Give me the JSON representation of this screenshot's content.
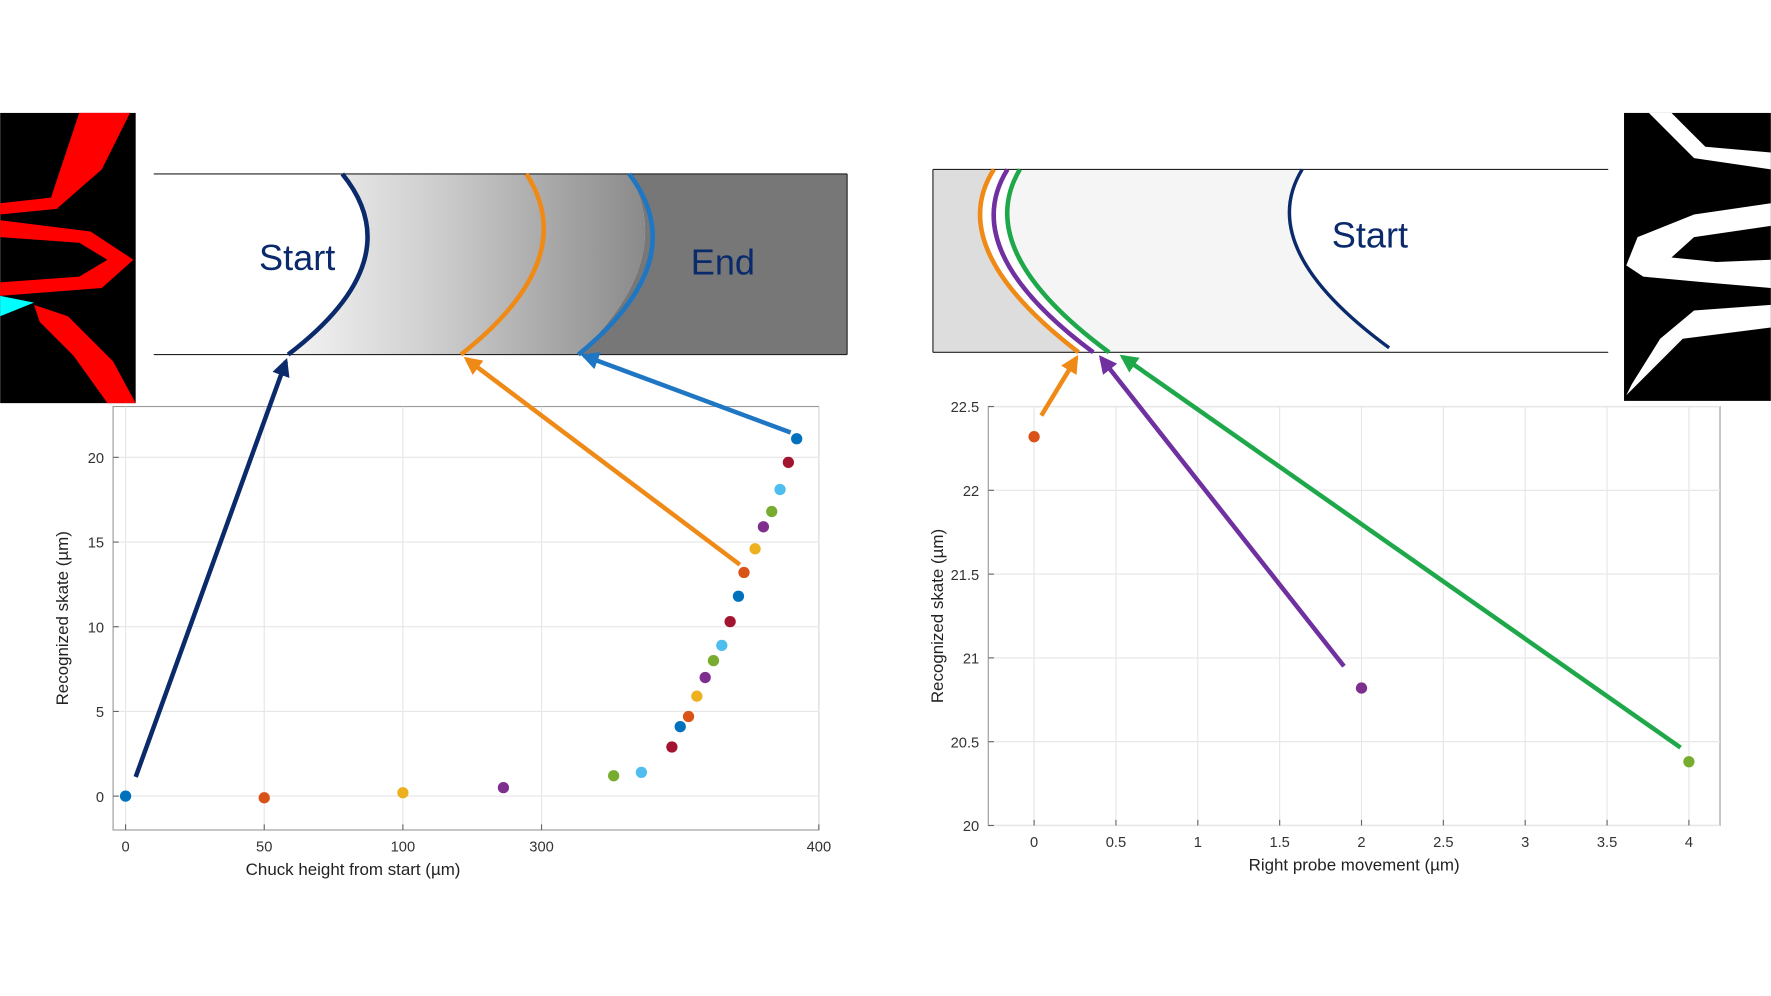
{
  "chart_data": [
    {
      "type": "scatter",
      "x_label": "Chuck height from start (µm)",
      "y_label": "Recognized skate (µm)",
      "annotations": [
        "Start",
        "End"
      ],
      "x": [
        0,
        50,
        100,
        245,
        326,
        336,
        347,
        350,
        353,
        356,
        359,
        362,
        365,
        368,
        371,
        373,
        377,
        380,
        383,
        386,
        389,
        392
      ],
      "y": [
        0,
        -0.1,
        0.2,
        0.5,
        1.2,
        1.4,
        2.9,
        4.1,
        4.7,
        5.9,
        7.0,
        8.0,
        8.9,
        10.3,
        11.8,
        13.2,
        14.6,
        15.9,
        16.8,
        18.1,
        19.7,
        21.1
      ],
      "colors": [
        "#0072bd",
        "#d95319",
        "#edb120",
        "#7e2f8e",
        "#77ac30",
        "#4dbeee",
        "#a2142f",
        "#0072bd",
        "#d95319",
        "#edb120",
        "#7e2f8e",
        "#77ac30",
        "#4dbeee",
        "#a2142f",
        "#0072bd",
        "#d95319",
        "#edb120",
        "#7e2f8e",
        "#77ac30",
        "#4dbeee",
        "#a2142f",
        "#0072bd"
      ],
      "xlim": [
        -4.5,
        400
      ],
      "ylim": [
        -2,
        23
      ],
      "xticks": [
        0,
        50,
        100,
        300,
        400
      ],
      "yticks": [
        0,
        5,
        10,
        15,
        20
      ],
      "grid": true
    },
    {
      "type": "scatter",
      "x_label": "Right probe movement (µm)",
      "y_label": "Recognized skate (µm)",
      "annotations": [
        "Start"
      ],
      "x": [
        0,
        2,
        4
      ],
      "y": [
        22.32,
        20.82,
        20.38
      ],
      "colors": [
        "#d95319",
        "#7e2f8e",
        "#77ac30"
      ],
      "xlim": [
        -0.28,
        4.19
      ],
      "ylim": [
        20,
        22.5
      ],
      "xticks": [
        0,
        0.5,
        1,
        1.5,
        2,
        2.5,
        3,
        3.5,
        4
      ],
      "yticks": [
        20,
        20.5,
        21,
        21.5,
        22,
        22.5
      ],
      "grid": true
    }
  ]
}
